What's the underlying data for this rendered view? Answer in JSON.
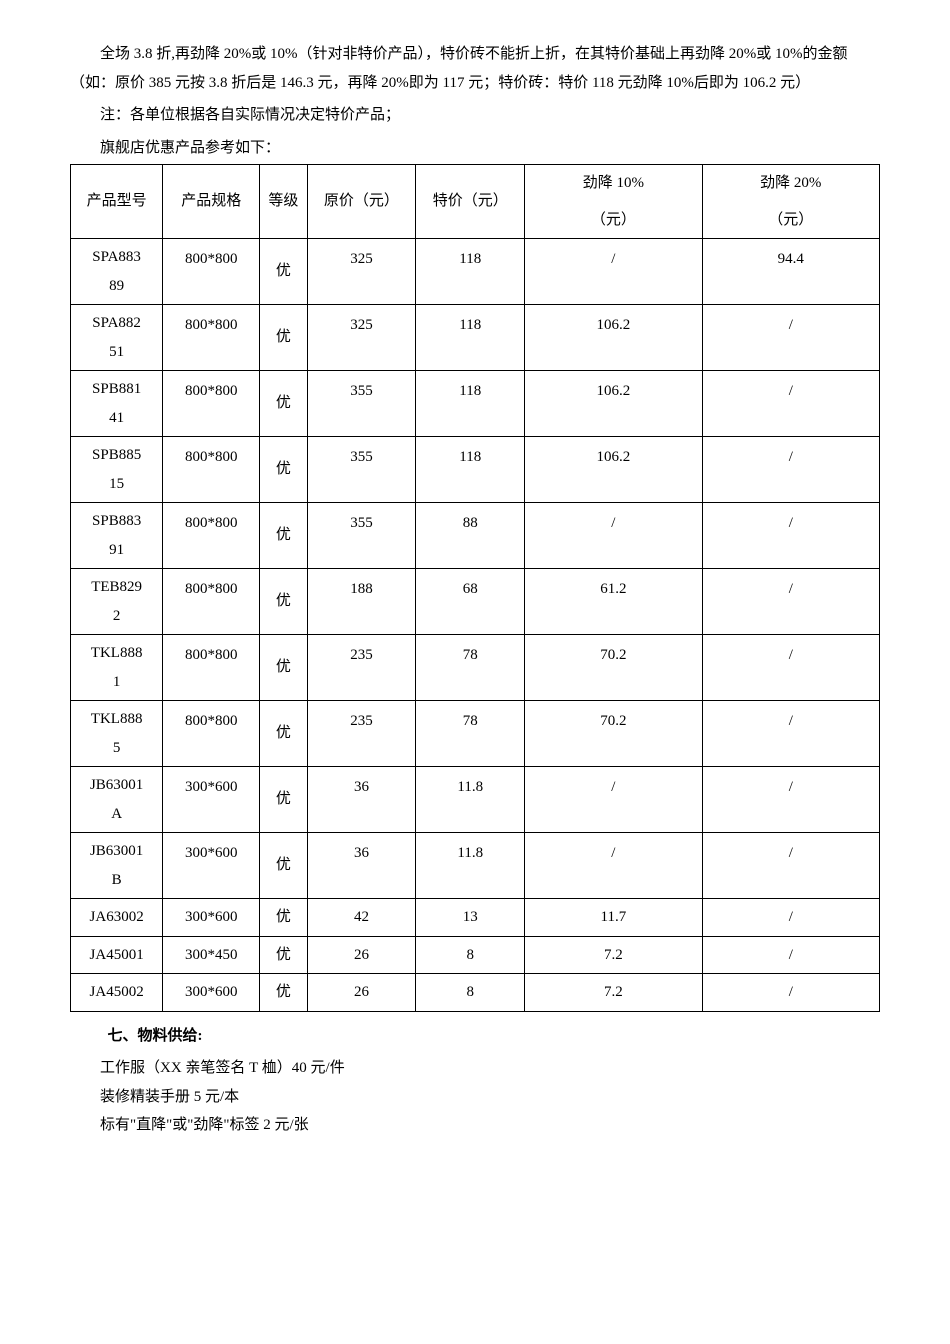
{
  "intro": {
    "para1": "全场 3.8 折,再劲降 20%或 10%（针对非特价产品），特价砖不能折上折，在其特价基础上再劲降 20%或 10%的金额（如：原价 385 元按 3.8 折后是 146.3 元，再降 20%即为 117 元；特价砖：特价 118 元劲降 10%后即为 106.2 元）",
    "note1": "注：各单位根据各自实际情况决定特价产品；",
    "note2": "旗舰店优惠产品参考如下："
  },
  "table": {
    "headers": {
      "model": "产品型号",
      "spec": "产品规格",
      "grade": "等级",
      "orig": "原价（元）",
      "special": "特价（元）",
      "drop10_a": "劲降 10%",
      "drop10_b": "（元）",
      "drop20_a": "劲降 20%",
      "drop20_b": "（元）"
    },
    "rows": [
      {
        "model_a": "SPA883",
        "model_b": "89",
        "spec": "800*800",
        "grade": "优",
        "orig": "325",
        "special": "118",
        "d10": "/",
        "d20": "94.4",
        "tall": true
      },
      {
        "model_a": "SPA882",
        "model_b": "51",
        "spec": "800*800",
        "grade": "优",
        "orig": "325",
        "special": "118",
        "d10": "106.2",
        "d20": "/",
        "tall": true
      },
      {
        "model_a": "SPB881",
        "model_b": "41",
        "spec": "800*800",
        "grade": "优",
        "orig": "355",
        "special": "118",
        "d10": "106.2",
        "d20": "/",
        "tall": true
      },
      {
        "model_a": "SPB885",
        "model_b": "15",
        "spec": "800*800",
        "grade": "优",
        "orig": "355",
        "special": "118",
        "d10": "106.2",
        "d20": "/",
        "tall": true
      },
      {
        "model_a": "SPB883",
        "model_b": "91",
        "spec": "800*800",
        "grade": "优",
        "orig": "355",
        "special": "88",
        "d10": "/",
        "d20": "/",
        "tall": true
      },
      {
        "model_a": "TEB829",
        "model_b": "2",
        "spec": "800*800",
        "grade": "优",
        "orig": "188",
        "special": "68",
        "d10": "61.2",
        "d20": "/",
        "tall": true
      },
      {
        "model_a": "TKL888",
        "model_b": "1",
        "spec": "800*800",
        "grade": "优",
        "orig": "235",
        "special": "78",
        "d10": "70.2",
        "d20": "/",
        "tall": true
      },
      {
        "model_a": "TKL888",
        "model_b": "5",
        "spec": "800*800",
        "grade": "优",
        "orig": "235",
        "special": "78",
        "d10": "70.2",
        "d20": "/",
        "tall": true
      },
      {
        "model_a": "JB63001",
        "model_b": "A",
        "spec": "300*600",
        "grade": "优",
        "orig": "36",
        "special": "11.8",
        "d10": "/",
        "d20": "/",
        "tall": true
      },
      {
        "model_a": "JB63001",
        "model_b": "B",
        "spec": "300*600",
        "grade": "优",
        "orig": "36",
        "special": "11.8",
        "d10": "/",
        "d20": "/",
        "tall": true
      },
      {
        "model_a": "JA63002",
        "model_b": "",
        "spec": "300*600",
        "grade": "优",
        "orig": "42",
        "special": "13",
        "d10": "11.7",
        "d20": "/",
        "tall": false
      },
      {
        "model_a": "JA45001",
        "model_b": "",
        "spec": "300*450",
        "grade": "优",
        "orig": "26",
        "special": "8",
        "d10": "7.2",
        "d20": "/",
        "tall": false
      },
      {
        "model_a": "JA45002",
        "model_b": "",
        "spec": "300*600",
        "grade": "优",
        "orig": "26",
        "special": "8",
        "d10": "7.2",
        "d20": "/",
        "tall": false
      }
    ]
  },
  "section7": {
    "title": "七、物料供给:",
    "items": [
      "工作服（XX 亲笔签名 T 桖）40 元/件",
      "装修精装手册 5 元/本",
      "标有\"直降\"或\"劲降\"标签 2 元/张"
    ]
  }
}
